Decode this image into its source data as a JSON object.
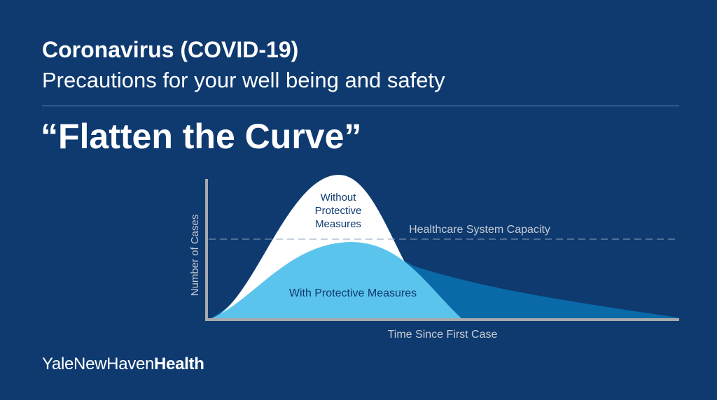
{
  "header": {
    "headline": "Coronavirus (COVID-19)",
    "subhead": "Precautions for your well being and safety"
  },
  "slogan": "“Flatten the Curve”",
  "diagram": {
    "y_axis_label": "Number of Cases",
    "x_axis_label": "Time Since First Case",
    "capacity_label": "Healthcare System Capacity",
    "peak_label_lines": [
      "Without",
      "Protective",
      "Measures"
    ],
    "flat_label": "With Protective Measures"
  },
  "brand": {
    "light": "YaleNewHaven",
    "bold": "Health"
  },
  "colors": {
    "background": "#0e3a70",
    "white_curve": "#ffffff",
    "light_blue_curve": "#5bc4ec",
    "dark_blue_tail": "#0a6aa8",
    "axis": "#a7a9ac"
  }
}
